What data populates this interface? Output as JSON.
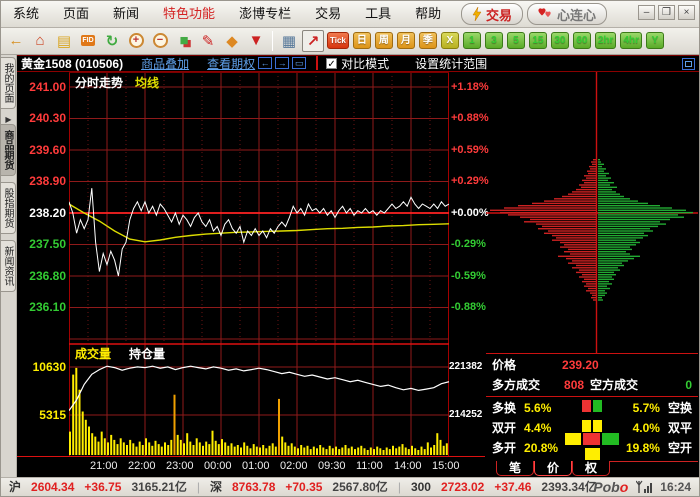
{
  "ui": {
    "menu": {
      "items": [
        {
          "label": "系统"
        },
        {
          "label": "页面"
        },
        {
          "label": "新闻"
        },
        {
          "label": "特色功能",
          "accent": true
        },
        {
          "label": "澎博专栏"
        },
        {
          "label": "交易"
        },
        {
          "label": "工具"
        },
        {
          "label": "帮助"
        }
      ]
    },
    "quick": {
      "trade": "交易",
      "heart": "心连心"
    },
    "window_controls": {
      "minimize": "–",
      "maximize": "❒",
      "close": "×"
    },
    "toolbar": {
      "icons": [
        {
          "name": "back-icon",
          "glyph": "←",
          "color": "#d78f1f"
        },
        {
          "name": "home-icon",
          "glyph": "⌂",
          "color": "#cc4422"
        },
        {
          "name": "notebook-icon",
          "glyph": "▤",
          "color": "#d9a520"
        },
        {
          "name": "fid-icon",
          "glyph": "FID",
          "color": "#fff",
          "kind": "boxed"
        },
        {
          "name": "refresh-icon",
          "glyph": "↻",
          "color": "#3faa3f"
        },
        {
          "name": "zoom-in-icon",
          "glyph": "+",
          "kind": "circle"
        },
        {
          "name": "zoom-out-icon",
          "glyph": "−",
          "kind": "circle"
        },
        {
          "name": "overlay-blocks-icon",
          "glyph": "■",
          "color": "#44aa44"
        },
        {
          "name": "pencil-icon",
          "glyph": "✎",
          "color": "#cc2222"
        },
        {
          "name": "paint-icon",
          "glyph": "◆",
          "color": "#dd8822"
        },
        {
          "name": "filter-icon",
          "glyph": "▼",
          "color": "#cc2222"
        },
        {
          "name": "sep",
          "sep": true
        },
        {
          "name": "quote-board-icon",
          "glyph": "▦",
          "color": "#557799"
        },
        {
          "name": "chart-type-icon",
          "glyph": "↗",
          "color": "#cc2222",
          "selected": true
        }
      ],
      "intervals": [
        {
          "label": "Tick",
          "style": "tick"
        },
        {
          "label": "日",
          "style": "orange"
        },
        {
          "label": "周",
          "style": "orange"
        },
        {
          "label": "月",
          "style": "orange"
        },
        {
          "label": "季",
          "style": "orange"
        },
        {
          "label": "X",
          "style": "olive"
        },
        {
          "label": "1",
          "style": "green"
        },
        {
          "label": "3",
          "style": "green"
        },
        {
          "label": "5",
          "style": "green"
        },
        {
          "label": "15",
          "style": "green"
        },
        {
          "label": "30",
          "style": "green"
        },
        {
          "label": "60",
          "style": "green"
        },
        {
          "label": "2hr",
          "style": "green"
        },
        {
          "label": "4hr",
          "style": "green"
        },
        {
          "label": "Y",
          "style": "green"
        }
      ]
    },
    "side_tabs": [
      {
        "label": "我的页面",
        "arrow": true
      },
      {
        "label": "商品期货",
        "active": true
      },
      {
        "label": "股指期货"
      },
      {
        "label": "新闻资讯"
      }
    ],
    "chart_header": {
      "title": "黄金1508 (010506)",
      "links": [
        {
          "label": "商品叠加"
        },
        {
          "label": "查看期权"
        }
      ],
      "nav_buttons": [
        {
          "name": "prev-contract-button",
          "glyph": "←"
        },
        {
          "name": "next-contract-button",
          "glyph": "→"
        },
        {
          "name": "window-split-button",
          "glyph": "▭"
        }
      ],
      "compare_checked": "✓",
      "compare_label": "对比模式",
      "stat_label": "设置统计范围"
    },
    "overlay_labels": {
      "timeline": "分时走势",
      "ma": "均线",
      "volume": "成交量",
      "open_interest": "持仓量"
    },
    "info_panel": {
      "price_label": "价格",
      "price_value": "239.20",
      "buy_label": "多方成交",
      "buy_value": "808",
      "sell_label": "空方成交",
      "sell_value": "0",
      "rows": [
        {
          "left_label": "多换",
          "left_value": "5.6%",
          "right_value": "5.7%",
          "right_label": "空换",
          "blocks": [
            {
              "c": "#ee3333",
              "w": 9
            },
            {
              "c": "#22bb22",
              "w": 9
            }
          ]
        },
        {
          "left_label": "双开",
          "left_value": "4.4%",
          "right_value": "4.0%",
          "right_label": "双平",
          "blocks": [
            {
              "c": "#ffee00",
              "w": 9
            },
            {
              "c": "#ffee00",
              "w": 9
            }
          ]
        },
        {
          "left_label": "多开",
          "left_value": "20.8%",
          "right_value": "19.8%",
          "right_label": "空开",
          "blocks": [
            {
              "c": "#ffee00",
              "w": 16
            },
            {
              "c": "#ee3333",
              "w": 17
            },
            {
              "c": "#22bb22",
              "w": 17
            },
            {
              "c": "#ffee00",
              "w": 15
            }
          ]
        }
      ],
      "tabs": [
        {
          "label": "笔"
        },
        {
          "label": "价",
          "active": true
        },
        {
          "label": "权"
        }
      ]
    },
    "status": {
      "items": [
        {
          "t": "沪",
          "c": "sb-label"
        },
        {
          "t": "2604.34",
          "c": "sb-red"
        },
        {
          "t": "+36.75",
          "c": "sb-red"
        },
        {
          "t": "3165.21亿",
          "c": "sb-dark"
        },
        {
          "t": "|",
          "c": "sb-sep"
        },
        {
          "t": "深",
          "c": "sb-label"
        },
        {
          "t": "8763.78",
          "c": "sb-red"
        },
        {
          "t": "+70.35",
          "c": "sb-red"
        },
        {
          "t": "2567.80亿",
          "c": "sb-dark"
        },
        {
          "t": "|",
          "c": "sb-sep"
        },
        {
          "t": "300",
          "c": "sb-label"
        },
        {
          "t": "2723.02",
          "c": "sb-red"
        },
        {
          "t": "+37.46",
          "c": "sb-red"
        },
        {
          "t": "2393.34亿",
          "c": "sb-dark"
        }
      ],
      "logo_a": "Pob",
      "logo_b": "o",
      "time": "16:24"
    }
  },
  "chart_data": {
    "type": "line",
    "title": "分时走势",
    "instrument": "黄金1508 (010506)",
    "base_price": 238.2,
    "price_axis": [
      241.0,
      240.3,
      239.6,
      238.9,
      238.2,
      237.5,
      236.8,
      236.1
    ],
    "pct_axis": [
      "+1.18%",
      "+0.88%",
      "+0.59%",
      "+0.29%",
      "+0.00%",
      "-0.29%",
      "-0.59%",
      "-0.88%"
    ],
    "time_labels": [
      "21:00",
      "22:00",
      "23:00",
      "00:00",
      "01:00",
      "02:00",
      "09:30",
      "11:00",
      "14:00",
      "15:00"
    ],
    "price_series": [
      238.45,
      238.2,
      237.75,
      238.05,
      237.85,
      238.05,
      238.75,
      237.55,
      236.9,
      237.3,
      237.05,
      237.35,
      237.15,
      236.8,
      237.4,
      237.55,
      238.05,
      238.3,
      238.45,
      238.25,
      238.45,
      238.2,
      238.35,
      238.15,
      238.4,
      238.3,
      238.15,
      238.0,
      238.2,
      237.95,
      238.15,
      238.05,
      237.9,
      238.1,
      238.2,
      238.0,
      237.9,
      238.05,
      237.8,
      237.9,
      237.7,
      237.95,
      238.05,
      237.85,
      237.75,
      237.9,
      237.55,
      237.8,
      237.7,
      237.85,
      237.7,
      237.8,
      237.65,
      237.85,
      237.75,
      237.9,
      238.0,
      237.9,
      238.1,
      238.35,
      238.2,
      238.3,
      238.15,
      238.4,
      238.25,
      238.3,
      238.2,
      238.3,
      238.15,
      238.25,
      238.1,
      238.25,
      238.35,
      238.2,
      238.3,
      238.15,
      238.25,
      238.2,
      238.3,
      238.2,
      238.25,
      238.15,
      238.25,
      238.2,
      238.3,
      238.4,
      238.3,
      238.35,
      238.45,
      238.35,
      238.55,
      238.4,
      238.3,
      238.4,
      238.35,
      238.3,
      238.4,
      238.3,
      238.45,
      238.35,
      238.4
    ],
    "ma_series": [
      238.4,
      238.2,
      238.02,
      237.8,
      237.62,
      237.56,
      237.6,
      237.66,
      237.7,
      237.73,
      237.75,
      237.77,
      237.78,
      237.79,
      237.8,
      237.81,
      237.83,
      237.85,
      237.86,
      237.88,
      237.89,
      237.91,
      237.92,
      237.94,
      237.95,
      237.96
    ],
    "volume_axis": [
      10630,
      5315
    ],
    "volume_series": [
      2800,
      9600,
      10400,
      7800,
      5200,
      4200,
      3400,
      2600,
      2200,
      1600,
      2800,
      2000,
      1500,
      2400,
      1800,
      1300,
      2000,
      1500,
      1200,
      1800,
      1400,
      1000,
      1600,
      1200,
      2000,
      1500,
      1100,
      1700,
      1300,
      1000,
      1500,
      1200,
      1800,
      7200,
      2400,
      1800,
      1400,
      2600,
      1600,
      1200,
      2000,
      1500,
      1100,
      1600,
      1300,
      2900,
      1700,
      1300,
      1900,
      1500,
      1100,
      1400,
      1000,
      1200,
      900,
      1500,
      1100,
      800,
      1300,
      1000,
      900,
      1200,
      800,
      1100,
      1400,
      1000,
      6700,
      2200,
      1500,
      1100,
      1400,
      1000,
      800,
      1200,
      900,
      1100,
      700,
      1000,
      800,
      1200,
      900,
      700,
      1100,
      800,
      1000,
      700,
      900,
      1200,
      800,
      1000,
      700,
      900,
      1100,
      800,
      600,
      900,
      700,
      1000,
      800,
      600,
      900,
      700,
      1100,
      800,
      1000,
      1300,
      900,
      700,
      1100,
      800,
      600,
      1000,
      700,
      1500,
      900,
      1200,
      2600,
      1800,
      1100,
      1400
    ],
    "volume_highlight": [
      33,
      66
    ],
    "oi_axis": [
      221382,
      214252
    ],
    "oi_series": [
      [
        0,
        214900
      ],
      [
        0.02,
        216500
      ],
      [
        0.04,
        218800
      ],
      [
        0.06,
        220300
      ],
      [
        0.08,
        221000
      ],
      [
        0.1,
        221500
      ],
      [
        0.12,
        221300
      ],
      [
        0.14,
        220900
      ],
      [
        0.16,
        221200
      ],
      [
        0.18,
        221400
      ],
      [
        0.2,
        221300
      ],
      [
        0.22,
        221500
      ],
      [
        0.24,
        221200
      ],
      [
        0.26,
        221400
      ],
      [
        0.28,
        221000
      ],
      [
        0.3,
        221300
      ],
      [
        0.32,
        221500
      ],
      [
        0.34,
        221300
      ],
      [
        0.36,
        221100
      ],
      [
        0.38,
        221400
      ],
      [
        0.4,
        221200
      ],
      [
        0.42,
        220900
      ],
      [
        0.44,
        221100
      ],
      [
        0.46,
        220800
      ],
      [
        0.48,
        221000
      ],
      [
        0.5,
        221200
      ],
      [
        0.52,
        221000
      ],
      [
        0.54,
        220700
      ],
      [
        0.56,
        220400
      ],
      [
        0.58,
        220600
      ],
      [
        0.6,
        220300
      ],
      [
        0.62,
        220000
      ],
      [
        0.64,
        220200
      ],
      [
        0.66,
        219900
      ],
      [
        0.68,
        219600
      ],
      [
        0.7,
        219800
      ],
      [
        0.72,
        219500
      ],
      [
        0.74,
        219200
      ],
      [
        0.76,
        219400
      ],
      [
        0.78,
        219100
      ],
      [
        0.8,
        218800
      ],
      [
        0.82,
        218500
      ],
      [
        0.84,
        218700
      ],
      [
        0.86,
        218300
      ],
      [
        0.88,
        218000
      ],
      [
        0.9,
        218200
      ],
      [
        0.92,
        217900
      ],
      [
        0.94,
        218100
      ],
      [
        0.96,
        218300
      ],
      [
        0.98,
        218900
      ],
      [
        1,
        219200
      ]
    ],
    "profile": {
      "red": [
        3,
        5,
        4,
        7,
        6,
        9,
        8,
        12,
        10,
        14,
        12,
        17,
        15,
        20,
        24,
        28,
        34,
        42,
        52,
        64,
        78,
        92,
        106,
        96,
        88,
        76,
        66,
        72,
        60,
        54,
        58,
        48,
        52,
        44,
        40,
        44,
        36,
        32,
        36,
        28,
        32,
        26,
        38,
        30,
        24,
        28,
        20,
        24,
        17,
        20,
        14,
        17,
        12,
        14,
        10,
        12,
        8,
        10,
        6,
        4,
        5,
        3
      ],
      "green": [
        2,
        3,
        6,
        4,
        8,
        6,
        11,
        8,
        13,
        10,
        16,
        12,
        19,
        14,
        18,
        22,
        26,
        32,
        40,
        50,
        62,
        74,
        88,
        95,
        80,
        86,
        72,
        62,
        68,
        60,
        52,
        55,
        46,
        50,
        45,
        38,
        42,
        38,
        32,
        34,
        28,
        32,
        42,
        36,
        30,
        24,
        26,
        20,
        22,
        16,
        18,
        14,
        16,
        11,
        14,
        9,
        12,
        7,
        9,
        7,
        4,
        5
      ]
    },
    "colors": {
      "price_line": "#ffffff",
      "ma_line": "#dddd00",
      "volume_bar": "#ffee00",
      "grid": "#8f1a1a",
      "grid_minor": "#6e1414",
      "base_line": "#ff2222",
      "border": "#cc0000",
      "up": "#ff3b3b",
      "down": "#33cc33",
      "profile_red": "#cc2222",
      "profile_green": "#22aa33"
    }
  }
}
